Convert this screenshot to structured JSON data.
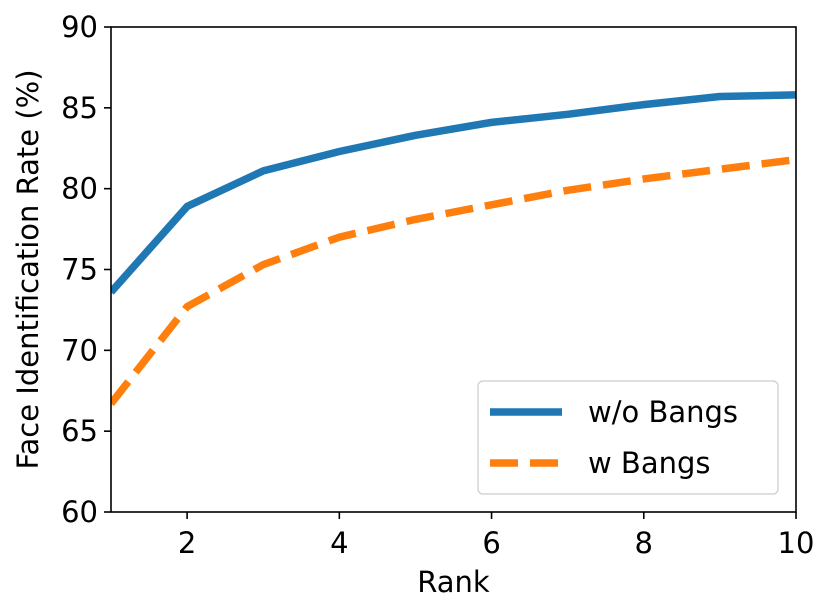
{
  "chart_data": {
    "type": "line",
    "title": "",
    "xlabel": "Rank",
    "ylabel": "Face Identification Rate (%)",
    "xlim": [
      1,
      10
    ],
    "ylim": [
      60,
      90
    ],
    "x_ticks": [
      2,
      4,
      6,
      8,
      10
    ],
    "y_ticks": [
      60,
      65,
      70,
      75,
      80,
      85,
      90
    ],
    "grid": false,
    "legend_position": "lower-right",
    "x": [
      1,
      2,
      3,
      4,
      5,
      6,
      7,
      8,
      9,
      10
    ],
    "series": [
      {
        "name": "w/o Bangs",
        "color": "#1f77b4",
        "style": "solid",
        "values": [
          73.6,
          78.9,
          81.1,
          82.3,
          83.3,
          84.1,
          84.6,
          85.2,
          85.7,
          85.8
        ]
      },
      {
        "name": "w Bangs",
        "color": "#ff7f0e",
        "style": "dashed",
        "values": [
          66.7,
          72.7,
          75.3,
          77.0,
          78.1,
          79.0,
          79.9,
          80.6,
          81.2,
          81.8
        ]
      }
    ]
  }
}
